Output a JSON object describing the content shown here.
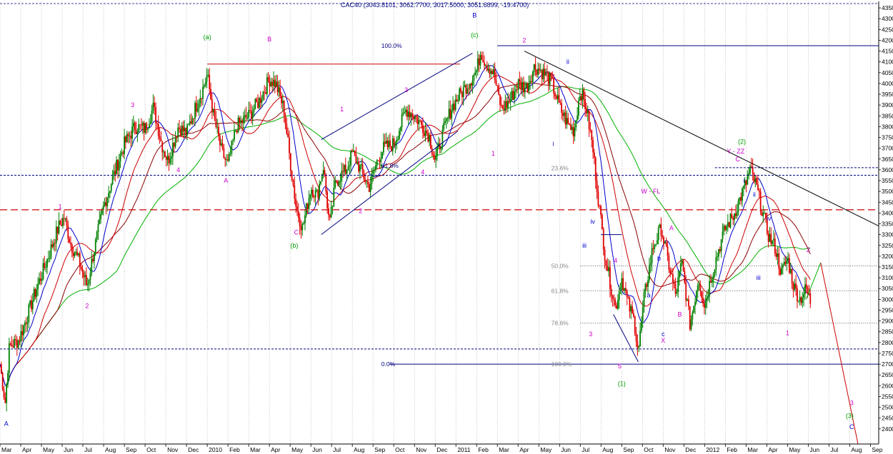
{
  "chart_data": {
    "type": "candlestick",
    "title": "CAC40 (3043.8101, 3062.7700, 3017.5000, 3051.6899, -19.4700)",
    "yaxis": {
      "side": "right",
      "ylim": [
        2330,
        4380
      ],
      "ticks": [
        2400,
        2450,
        2500,
        2550,
        2600,
        2650,
        2700,
        2750,
        2800,
        2850,
        2900,
        2950,
        3000,
        3050,
        3100,
        3150,
        3200,
        3250,
        3300,
        3350,
        3400,
        3450,
        3500,
        3550,
        3600,
        3650,
        3700,
        3750,
        3800,
        3850,
        3900,
        3950,
        4000,
        4050,
        4100,
        4150,
        4200,
        4250,
        4300,
        4350
      ]
    },
    "xaxis": {
      "start": "2009-03",
      "end": "2012-09",
      "labels": [
        {
          "t": 0,
          "label": "Mar"
        },
        {
          "t": 1,
          "label": "Apr"
        },
        {
          "t": 2,
          "label": "May"
        },
        {
          "t": 3,
          "label": "Jun"
        },
        {
          "t": 4,
          "label": "Jul"
        },
        {
          "t": 5,
          "label": "Aug"
        },
        {
          "t": 6,
          "label": "Sep"
        },
        {
          "t": 7,
          "label": "Oct"
        },
        {
          "t": 8,
          "label": "Nov"
        },
        {
          "t": 9,
          "label": "Dec"
        },
        {
          "t": 10,
          "label": "2010"
        },
        {
          "t": 11,
          "label": "Feb"
        },
        {
          "t": 12,
          "label": "Mar"
        },
        {
          "t": 13,
          "label": "Apr"
        },
        {
          "t": 14,
          "label": "May"
        },
        {
          "t": 15,
          "label": "Jun"
        },
        {
          "t": 16,
          "label": "Jul"
        },
        {
          "t": 17,
          "label": "Aug"
        },
        {
          "t": 18,
          "label": "Sep"
        },
        {
          "t": 19,
          "label": "Oct"
        },
        {
          "t": 20,
          "label": "Nov"
        },
        {
          "t": 21,
          "label": "Dec"
        },
        {
          "t": 22,
          "label": "2011"
        },
        {
          "t": 23,
          "label": "Feb"
        },
        {
          "t": 24,
          "label": "Mar"
        },
        {
          "t": 25,
          "label": "Apr"
        },
        {
          "t": 26,
          "label": "May"
        },
        {
          "t": 27,
          "label": "Jun"
        },
        {
          "t": 28,
          "label": "Jul"
        },
        {
          "t": 29,
          "label": "Aug"
        },
        {
          "t": 30,
          "label": "Sep"
        },
        {
          "t": 31,
          "label": "Oct"
        },
        {
          "t": 32,
          "label": "Nov"
        },
        {
          "t": 33,
          "label": "Dec"
        },
        {
          "t": 34,
          "label": "2012"
        },
        {
          "t": 35,
          "label": "Feb"
        },
        {
          "t": 36,
          "label": "Mar"
        },
        {
          "t": 37,
          "label": "Apr"
        },
        {
          "t": 38,
          "label": "May"
        },
        {
          "t": 39,
          "label": "Jun"
        },
        {
          "t": 40,
          "label": "Jul"
        },
        {
          "t": 41,
          "label": "Aug"
        },
        {
          "t": 42,
          "label": "Sep"
        }
      ]
    },
    "price_path": [
      [
        0.0,
        2700
      ],
      [
        0.25,
        2520
      ],
      [
        0.45,
        2780
      ],
      [
        0.9,
        2810
      ],
      [
        1.3,
        2920
      ],
      [
        1.8,
        3060
      ],
      [
        2.3,
        3190
      ],
      [
        2.8,
        3330
      ],
      [
        3.1,
        3380
      ],
      [
        3.4,
        3260
      ],
      [
        3.8,
        3180
      ],
      [
        4.2,
        3060
      ],
      [
        4.5,
        3210
      ],
      [
        5.0,
        3430
      ],
      [
        5.5,
        3580
      ],
      [
        6.0,
        3720
      ],
      [
        6.5,
        3800
      ],
      [
        7.0,
        3790
      ],
      [
        7.4,
        3890
      ],
      [
        7.8,
        3720
      ],
      [
        8.1,
        3640
      ],
      [
        8.6,
        3800
      ],
      [
        9.0,
        3770
      ],
      [
        9.4,
        3880
      ],
      [
        9.8,
        3980
      ],
      [
        10.0,
        4040
      ],
      [
        10.3,
        3850
      ],
      [
        10.7,
        3680
      ],
      [
        11.0,
        3620
      ],
      [
        11.4,
        3800
      ],
      [
        12.0,
        3850
      ],
      [
        12.5,
        3920
      ],
      [
        13.0,
        4020
      ],
      [
        13.3,
        4000
      ],
      [
        13.7,
        3880
      ],
      [
        14.0,
        3640
      ],
      [
        14.3,
        3420
      ],
      [
        14.6,
        3330
      ],
      [
        15.0,
        3520
      ],
      [
        15.3,
        3480
      ],
      [
        15.6,
        3620
      ],
      [
        15.9,
        3340
      ],
      [
        16.2,
        3550
      ],
      [
        16.7,
        3600
      ],
      [
        17.0,
        3680
      ],
      [
        17.4,
        3600
      ],
      [
        17.8,
        3520
      ],
      [
        18.2,
        3640
      ],
      [
        18.5,
        3700
      ],
      [
        19.0,
        3720
      ],
      [
        19.3,
        3800
      ],
      [
        19.6,
        3880
      ],
      [
        20.0,
        3850
      ],
      [
        20.4,
        3800
      ],
      [
        20.7,
        3760
      ],
      [
        21.0,
        3640
      ],
      [
        21.4,
        3780
      ],
      [
        21.8,
        3890
      ],
      [
        22.2,
        3950
      ],
      [
        22.6,
        4000
      ],
      [
        23.0,
        4060
      ],
      [
        23.2,
        4150
      ],
      [
        23.4,
        4100
      ],
      [
        23.8,
        4050
      ],
      [
        24.2,
        3880
      ],
      [
        24.6,
        3920
      ],
      [
        25.0,
        4000
      ],
      [
        25.4,
        3980
      ],
      [
        25.8,
        4080
      ],
      [
        26.2,
        4050
      ],
      [
        26.6,
        4010
      ],
      [
        27.0,
        3890
      ],
      [
        27.4,
        3810
      ],
      [
        27.7,
        3780
      ],
      [
        28.0,
        3970
      ],
      [
        28.3,
        3880
      ],
      [
        28.6,
        3700
      ],
      [
        28.9,
        3440
      ],
      [
        29.2,
        3200
      ],
      [
        29.5,
        3050
      ],
      [
        29.7,
        2960
      ],
      [
        30.0,
        3100
      ],
      [
        30.3,
        2980
      ],
      [
        30.6,
        2900
      ],
      [
        30.8,
        2760
      ],
      [
        31.1,
        3020
      ],
      [
        31.5,
        3240
      ],
      [
        31.9,
        3330
      ],
      [
        32.2,
        3190
      ],
      [
        32.6,
        3020
      ],
      [
        32.9,
        3170
      ],
      [
        33.3,
        2880
      ],
      [
        33.7,
        3100
      ],
      [
        34.0,
        2970
      ],
      [
        34.3,
        3100
      ],
      [
        34.7,
        3240
      ],
      [
        35.0,
        3330
      ],
      [
        35.4,
        3390
      ],
      [
        35.8,
        3490
      ],
      [
        36.0,
        3540
      ],
      [
        36.2,
        3600
      ],
      [
        36.5,
        3520
      ],
      [
        36.8,
        3400
      ],
      [
        37.1,
        3290
      ],
      [
        37.4,
        3240
      ],
      [
        37.7,
        3120
      ],
      [
        38.0,
        3190
      ],
      [
        38.3,
        3060
      ],
      [
        38.6,
        3000
      ],
      [
        38.9,
        3050
      ],
      [
        39.1,
        2990
      ]
    ],
    "moving_average_colors": {
      "blue": "#0000cc",
      "red": "#cc0000",
      "darkred": "#8b0000",
      "green": "#00b000"
    },
    "candle_colors": {
      "up": "#008000",
      "down": "#e00000"
    },
    "horizontal_lines": [
      {
        "y": 4175,
        "style": "solid",
        "color": "#000080",
        "x1": 24.0,
        "x2": 42.4
      },
      {
        "y": 3610,
        "style": "dashed",
        "color": "#000080",
        "x1": 34.5,
        "x2": 42.4
      },
      {
        "y": 3575,
        "style": "dashed",
        "color": "#000080",
        "x1": 0.0,
        "x2": 42.4
      },
      {
        "y": 3415,
        "style": "longdash",
        "color": "#cc0000",
        "x1": 0.0,
        "x2": 42.4
      },
      {
        "y": 3155,
        "style": "dotted",
        "color": "#555555",
        "x1": 28.0,
        "x2": 42.4
      },
      {
        "y": 3040,
        "style": "dotted",
        "color": "#555555",
        "x1": 28.0,
        "x2": 42.4
      },
      {
        "y": 2890,
        "style": "dotted",
        "color": "#555555",
        "x1": 28.0,
        "x2": 42.4
      },
      {
        "y": 2770,
        "style": "dashed",
        "color": "#000080",
        "x1": 0.0,
        "x2": 42.4
      },
      {
        "y": 2700,
        "style": "solid",
        "color": "#000080",
        "x1": 18.8,
        "x2": 42.4
      },
      {
        "y": 4090,
        "style": "solid",
        "color": "#cc0000",
        "x1": 10.0,
        "x2": 22.2
      }
    ],
    "trend_lines": [
      {
        "from": [
          15.5,
          3300
        ],
        "to": [
          22.1,
          3780
        ],
        "color": "#000080"
      },
      {
        "from": [
          15.5,
          3740
        ],
        "to": [
          22.8,
          4140
        ],
        "color": "#000080"
      },
      {
        "from": [
          29.6,
          2930
        ],
        "to": [
          30.8,
          2710
        ],
        "color": "#000080"
      },
      {
        "from": [
          29.0,
          3300
        ],
        "to": [
          30.0,
          3300
        ],
        "color": "#000080"
      },
      {
        "from": [
          25.3,
          4150
        ],
        "to": [
          42.4,
          3340
        ],
        "color": "#000000"
      },
      {
        "from": [
          38.9,
          3000
        ],
        "to": [
          39.6,
          3170
        ],
        "color": "#00b000"
      },
      {
        "from": [
          39.6,
          3170
        ],
        "to": [
          41.4,
          2330
        ],
        "color": "#cc0000"
      }
    ],
    "fib_labels": [
      {
        "text": "100.0%",
        "x": 18.4,
        "y": 4175,
        "color": "#000080"
      },
      {
        "text": "61.8%",
        "x": 18.4,
        "y": 3620,
        "color": "#000080"
      },
      {
        "text": "23.6%",
        "x": 26.6,
        "y": 3608,
        "color": "#888888"
      },
      {
        "text": "50.0%",
        "x": 26.6,
        "y": 3155,
        "color": "#888888"
      },
      {
        "text": "61.8%",
        "x": 26.6,
        "y": 3040,
        "color": "#888888"
      },
      {
        "text": "78.6%",
        "x": 26.6,
        "y": 2890,
        "color": "#888888"
      },
      {
        "text": "0.0%",
        "x": 18.4,
        "y": 2700,
        "color": "#000080"
      },
      {
        "text": "100.0%",
        "x": 26.6,
        "y": 2700,
        "color": "#888888"
      }
    ],
    "wave_labels": [
      {
        "text": "A",
        "x": 0.3,
        "y": 2415,
        "color": "#0000cc"
      },
      {
        "text": "1",
        "x": 2.9,
        "y": 3420,
        "color": "#cc00cc"
      },
      {
        "text": "2",
        "x": 4.2,
        "y": 2960,
        "color": "#cc00cc"
      },
      {
        "text": "3",
        "x": 6.4,
        "y": 3890,
        "color": "#cc00cc"
      },
      {
        "text": "4",
        "x": 8.6,
        "y": 3590,
        "color": "#cc00cc"
      },
      {
        "text": "(a)",
        "x": 10.0,
        "y": 4205,
        "color": "#00a000"
      },
      {
        "text": "A",
        "x": 10.9,
        "y": 3540,
        "color": "#cc00cc"
      },
      {
        "text": "B",
        "x": 13.0,
        "y": 4195,
        "color": "#cc00cc"
      },
      {
        "text": "C",
        "x": 14.3,
        "y": 3300,
        "color": "#cc00cc"
      },
      {
        "text": "(b)",
        "x": 14.2,
        "y": 3240,
        "color": "#00a000"
      },
      {
        "text": "1",
        "x": 16.5,
        "y": 3870,
        "color": "#cc00cc"
      },
      {
        "text": "2",
        "x": 17.4,
        "y": 3400,
        "color": "#cc00cc"
      },
      {
        "text": "3",
        "x": 19.6,
        "y": 3960,
        "color": "#cc00cc"
      },
      {
        "text": "4",
        "x": 20.4,
        "y": 3580,
        "color": "#cc00cc"
      },
      {
        "text": "B",
        "x": 22.9,
        "y": 4305,
        "color": "#0000cc"
      },
      {
        "text": "(c)",
        "x": 22.9,
        "y": 4215,
        "color": "#00a000"
      },
      {
        "text": "1",
        "x": 23.8,
        "y": 3665,
        "color": "#cc00cc"
      },
      {
        "text": "2",
        "x": 25.3,
        "y": 4190,
        "color": "#cc00cc"
      },
      {
        "text": "ii",
        "x": 27.4,
        "y": 4090,
        "color": "#0000cc"
      },
      {
        "text": "i",
        "x": 26.7,
        "y": 3710,
        "color": "#0000cc"
      },
      {
        "text": "iv",
        "x": 28.6,
        "y": 3350,
        "color": "#0000cc"
      },
      {
        "text": "iii",
        "x": 28.2,
        "y": 3240,
        "color": "#0000cc"
      },
      {
        "text": "4",
        "x": 29.7,
        "y": 3170,
        "color": "#cc00cc"
      },
      {
        "text": "3",
        "x": 28.5,
        "y": 2830,
        "color": "#cc00cc"
      },
      {
        "text": "5",
        "x": 29.9,
        "y": 2680,
        "color": "#cc00cc"
      },
      {
        "text": "(1)",
        "x": 30.0,
        "y": 2600,
        "color": "#00a000"
      },
      {
        "text": "W - FL",
        "x": 31.4,
        "y": 3490,
        "color": "#cc00cc"
      },
      {
        "text": "A",
        "x": 32.4,
        "y": 3320,
        "color": "#cc00cc"
      },
      {
        "text": "b",
        "x": 31.8,
        "y": 3180,
        "color": "#0000cc"
      },
      {
        "text": "a",
        "x": 31.3,
        "y": 3010,
        "color": "#0000cc"
      },
      {
        "text": "B",
        "x": 32.8,
        "y": 2920,
        "color": "#cc00cc"
      },
      {
        "text": "c",
        "x": 32.0,
        "y": 2830,
        "color": "#0000cc"
      },
      {
        "text": "X",
        "x": 32.0,
        "y": 2800,
        "color": "#cc00cc"
      },
      {
        "text": "(2)",
        "x": 35.8,
        "y": 3720,
        "color": "#00a000"
      },
      {
        "text": "Y - ZZ",
        "x": 35.5,
        "y": 3675,
        "color": "#cc00cc"
      },
      {
        "text": "C",
        "x": 35.6,
        "y": 3640,
        "color": "#cc00cc"
      },
      {
        "text": "i",
        "x": 35.9,
        "y": 3540,
        "color": "#0000cc"
      },
      {
        "text": "ii",
        "x": 36.4,
        "y": 3475,
        "color": "#0000cc"
      },
      {
        "text": "iv",
        "x": 37.1,
        "y": 3365,
        "color": "#0000cc"
      },
      {
        "text": "iii",
        "x": 36.6,
        "y": 3090,
        "color": "#0000cc"
      },
      {
        "text": "1",
        "x": 38.0,
        "y": 2835,
        "color": "#cc00cc"
      },
      {
        "text": "2",
        "x": 39.0,
        "y": 3220,
        "color": "#cc00cc"
      },
      {
        "text": "3",
        "x": 41.1,
        "y": 2510,
        "color": "#cc00cc"
      },
      {
        "text": "(3)",
        "x": 41.0,
        "y": 2450,
        "color": "#00a000"
      },
      {
        "text": "C",
        "x": 41.1,
        "y": 2400,
        "color": "#0000cc"
      }
    ]
  }
}
